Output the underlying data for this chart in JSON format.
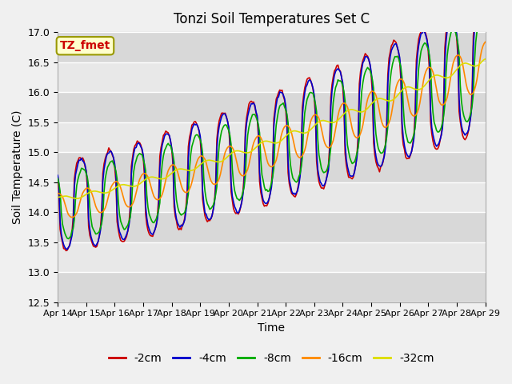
{
  "title": "Tonzi Soil Temperatures Set C",
  "xlabel": "Time",
  "ylabel": "Soil Temperature (C)",
  "ylim": [
    12.5,
    17.0
  ],
  "figure_bg": "#e8e8e8",
  "plot_bg": "#e8e8e8",
  "grid_color": "#ffffff",
  "series": [
    {
      "label": "-2cm",
      "color": "#cc0000"
    },
    {
      "label": "-4cm",
      "color": "#0000cc"
    },
    {
      "label": "-8cm",
      "color": "#00aa00"
    },
    {
      "label": "-16cm",
      "color": "#ff8800"
    },
    {
      "label": "-32cm",
      "color": "#dddd00"
    }
  ],
  "annotation": "TZ_fmet",
  "annotation_color": "#cc0000",
  "annotation_bg": "#ffffcc",
  "annotation_border": "#999900",
  "xtick_labels": [
    "Apr 14",
    "Apr 15",
    "Apr 16",
    "Apr 17",
    "Apr 18",
    "Apr 19",
    "Apr 20",
    "Apr 21",
    "Apr 22",
    "Apr 23",
    "Apr 24",
    "Apr 25",
    "Apr 26",
    "Apr 27",
    "Apr 28",
    "Apr 29"
  ],
  "ytick_values": [
    12.5,
    13.0,
    13.5,
    14.0,
    14.5,
    15.0,
    15.5,
    16.0,
    16.5,
    17.0
  ]
}
